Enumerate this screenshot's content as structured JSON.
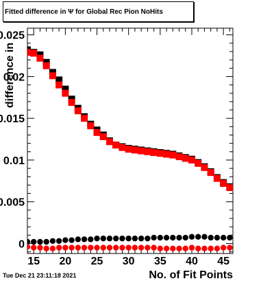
{
  "chart_data": {
    "type": "scatter",
    "title": "Fitted difference in  Ψ  for Global Rec Pion NoHits",
    "xlabel": "No. of Fit Points",
    "ylabel": "difference in",
    "xlim": [
      14,
      46.5
    ],
    "ylim": [
      -0.0012,
      0.0258
    ],
    "x_ticks": [
      15,
      20,
      25,
      30,
      35,
      40,
      45
    ],
    "y_ticks": [
      0,
      0.005,
      0.01,
      0.015,
      0.02,
      0.025
    ],
    "y_tick_labels": [
      "0",
      "0.005",
      "0.01",
      "0.015",
      "0.02",
      "0.025"
    ],
    "colors": {
      "black": "#000000",
      "red": "#ff0000"
    },
    "series": [
      {
        "color": "#000000",
        "marker": "square",
        "x": [
          14,
          15,
          16,
          17,
          18,
          19,
          20,
          21,
          22,
          23,
          24,
          25,
          26,
          27,
          28,
          29,
          30,
          31,
          32,
          33,
          34,
          35,
          36,
          37,
          38,
          39,
          40,
          41,
          42,
          43,
          44,
          45,
          46
        ],
        "y": [
          0.0232,
          0.0229,
          0.0226,
          0.0217,
          0.0205,
          0.0196,
          0.0185,
          0.0173,
          0.0162,
          0.0152,
          0.0143,
          0.0136,
          0.013,
          0.0123,
          0.0118,
          0.0116,
          0.0114,
          0.0113,
          0.0112,
          0.0111,
          0.011,
          0.0109,
          0.0108,
          0.0107,
          0.0105,
          0.0103,
          0.0101,
          0.0097,
          0.0092,
          0.0086,
          0.0079,
          0.0073,
          0.0068
        ]
      },
      {
        "color": "#ff0000",
        "marker": "square",
        "x": [
          14,
          15,
          16,
          17,
          18,
          19,
          20,
          21,
          22,
          23,
          24,
          25,
          26,
          27,
          28,
          29,
          30,
          31,
          32,
          33,
          34,
          35,
          36,
          37,
          38,
          39,
          40,
          41,
          42,
          43,
          44,
          45,
          46
        ],
        "y": [
          0.0229,
          0.0228,
          0.0222,
          0.0213,
          0.0201,
          0.019,
          0.018,
          0.0169,
          0.0159,
          0.015,
          0.0141,
          0.0133,
          0.0128,
          0.0122,
          0.0118,
          0.0115,
          0.0113,
          0.0112,
          0.0111,
          0.011,
          0.0109,
          0.0108,
          0.0107,
          0.0106,
          0.0104,
          0.0102,
          0.01,
          0.0096,
          0.0091,
          0.0085,
          0.0078,
          0.0072,
          0.0067
        ]
      },
      {
        "color": "#000000",
        "marker": "circle",
        "x": [
          14,
          15,
          16,
          17,
          18,
          19,
          20,
          21,
          22,
          23,
          24,
          25,
          26,
          27,
          28,
          29,
          30,
          31,
          32,
          33,
          34,
          35,
          36,
          37,
          38,
          39,
          40,
          41,
          42,
          43,
          44,
          45,
          46
        ],
        "y": [
          0.0002,
          0.0002,
          0.0002,
          0.0002,
          0.0003,
          0.0003,
          0.0004,
          0.0004,
          0.0005,
          0.0005,
          0.0005,
          0.0006,
          0.0006,
          0.0006,
          0.0006,
          0.0006,
          0.0006,
          0.0006,
          0.0006,
          0.0006,
          0.0007,
          0.0007,
          0.0007,
          0.0007,
          0.0007,
          0.0007,
          0.0008,
          0.0008,
          0.0008,
          0.0007,
          0.0007,
          0.0007,
          0.0007
        ]
      },
      {
        "color": "#ff0000",
        "marker": "circle",
        "x": [
          14,
          15,
          16,
          17,
          18,
          19,
          20,
          21,
          22,
          23,
          24,
          25,
          26,
          27,
          28,
          29,
          30,
          31,
          32,
          33,
          34,
          35,
          36,
          37,
          38,
          39,
          40,
          41,
          42,
          43,
          44,
          45,
          46
        ],
        "y": [
          -0.0004,
          -0.0005,
          -0.0005,
          -0.0006,
          -0.0006,
          -0.0005,
          -0.0005,
          -0.0005,
          -0.0005,
          -0.0005,
          -0.0005,
          -0.0005,
          -0.0005,
          -0.0005,
          -0.0005,
          -0.0005,
          -0.0005,
          -0.0005,
          -0.0005,
          -0.0005,
          -0.0005,
          -0.0006,
          -0.0006,
          -0.0006,
          -0.0006,
          -0.0006,
          -0.0005,
          -0.0006,
          -0.0006,
          -0.0006,
          -0.0006,
          -0.0005,
          -0.0005
        ]
      }
    ]
  },
  "footer": {
    "date": "Tue Dec 21 23:11:18 2021"
  }
}
